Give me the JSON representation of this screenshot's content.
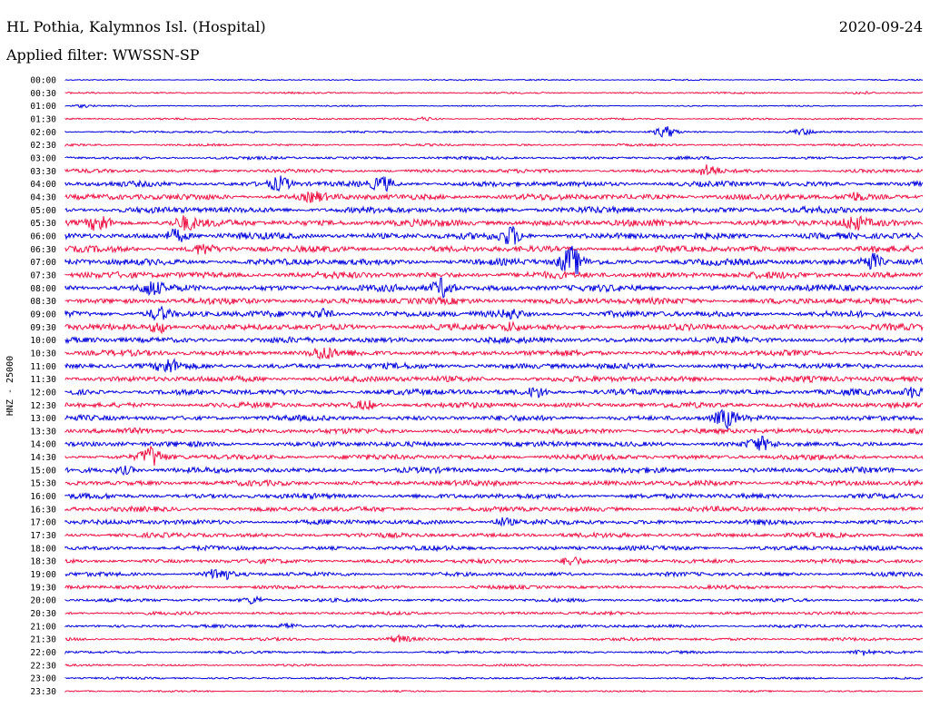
{
  "header": {
    "title": "HL Pothia, Kalymnos Isl. (Hospital)",
    "date": "2020-09-24",
    "filter": "Applied filter: WWSSN-SP"
  },
  "colors": {
    "trace_a": "#0000dd",
    "trace_b": "#ee1144"
  },
  "chart_data": {
    "type": "line",
    "kind": "helicorder",
    "ylabel": "HNZ - 25000",
    "row_labels": [
      "00:00",
      "00:30",
      "01:00",
      "01:30",
      "02:00",
      "02:30",
      "03:00",
      "03:30",
      "04:00",
      "04:30",
      "05:00",
      "05:30",
      "06:00",
      "06:30",
      "07:00",
      "07:30",
      "08:00",
      "08:30",
      "09:00",
      "09:30",
      "10:00",
      "10:30",
      "11:00",
      "11:30",
      "12:00",
      "12:30",
      "13:00",
      "13:30",
      "14:00",
      "14:30",
      "15:00",
      "15:30",
      "16:00",
      "16:30",
      "17:00",
      "17:30",
      "18:00",
      "18:30",
      "19:00",
      "19:30",
      "20:00",
      "20:30",
      "21:00",
      "21:30",
      "22:00",
      "22:30",
      "23:00",
      "23:30"
    ],
    "noise_level": [
      0.6,
      0.8,
      0.6,
      0.9,
      1.0,
      1.1,
      1.4,
      1.8,
      2.6,
      3.0,
      3.0,
      3.3,
      3.2,
      3.0,
      3.1,
      3.2,
      3.2,
      3.1,
      3.0,
      3.0,
      2.8,
      2.8,
      2.8,
      2.9,
      2.8,
      2.6,
      2.6,
      2.6,
      2.6,
      2.6,
      2.6,
      2.6,
      2.5,
      2.5,
      2.4,
      2.3,
      2.2,
      2.1,
      2.0,
      1.8,
      1.6,
      1.5,
      1.5,
      1.5,
      1.2,
      1.0,
      1.0,
      0.8
    ],
    "bursts": [
      [
        0,
        0.55,
        0.6
      ],
      [
        1,
        0.93,
        1.2
      ],
      [
        2,
        0.02,
        1.5
      ],
      [
        3,
        0.42,
        1.5
      ],
      [
        4,
        0.7,
        6
      ],
      [
        4,
        0.86,
        2.5
      ],
      [
        7,
        0.75,
        6
      ],
      [
        8,
        0.25,
        7
      ],
      [
        8,
        0.37,
        7
      ],
      [
        9,
        0.29,
        4
      ],
      [
        9,
        0.92,
        4
      ],
      [
        11,
        0.04,
        8
      ],
      [
        11,
        0.14,
        6
      ],
      [
        11,
        0.92,
        6
      ],
      [
        12,
        0.13,
        6
      ],
      [
        12,
        0.52,
        9
      ],
      [
        13,
        0.16,
        5
      ],
      [
        14,
        0.59,
        16
      ],
      [
        14,
        0.94,
        9
      ],
      [
        16,
        0.1,
        6
      ],
      [
        16,
        0.44,
        10
      ],
      [
        18,
        0.11,
        6
      ],
      [
        18,
        0.3,
        5
      ],
      [
        18,
        0.52,
        4
      ],
      [
        19,
        0.11,
        6
      ],
      [
        19,
        0.52,
        4
      ],
      [
        21,
        0.3,
        6
      ],
      [
        22,
        0.12,
        6
      ],
      [
        24,
        0.55,
        5
      ],
      [
        24,
        0.99,
        6
      ],
      [
        25,
        0.35,
        4
      ],
      [
        26,
        0.77,
        9
      ],
      [
        28,
        0.81,
        6
      ],
      [
        29,
        0.1,
        10
      ],
      [
        30,
        0.07,
        4
      ],
      [
        34,
        0.51,
        4
      ],
      [
        37,
        0.59,
        5
      ],
      [
        38,
        0.18,
        7
      ],
      [
        40,
        0.22,
        4
      ],
      [
        42,
        0.26,
        3
      ],
      [
        43,
        0.39,
        3
      ],
      [
        44,
        0.93,
        3
      ]
    ]
  }
}
